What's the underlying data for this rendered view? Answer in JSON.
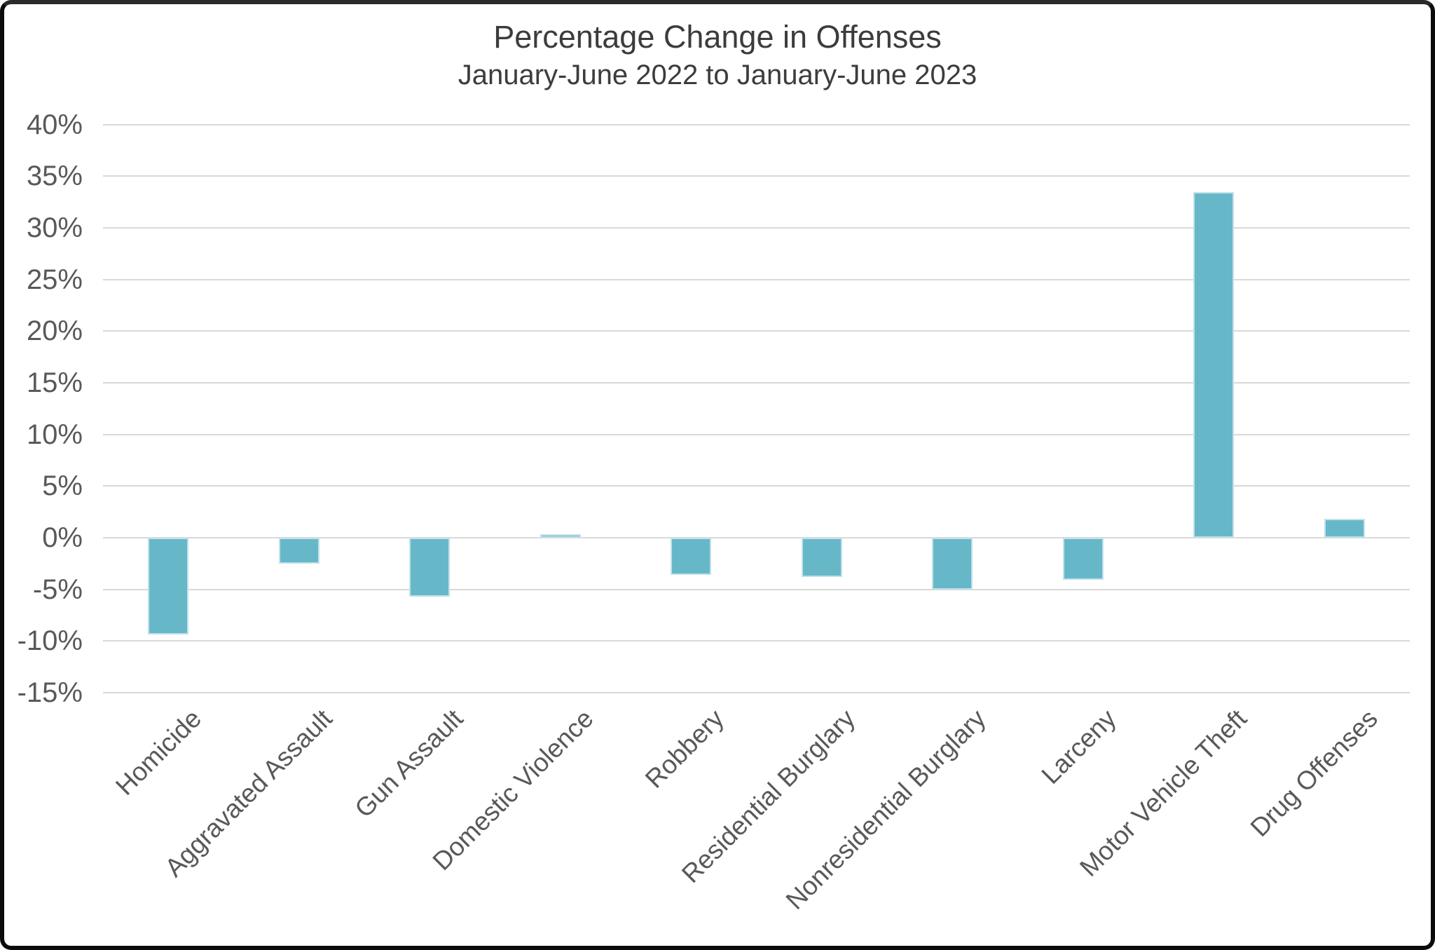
{
  "chart_data": {
    "type": "bar",
    "title": "Percentage Change in Offenses",
    "subtitle": "January-June 2022 to January-June 2023",
    "categories": [
      "Homicide",
      "Aggravated Assault",
      "Gun Assault",
      "Domestic Violence",
      "Robbery",
      "Residential Burglary",
      "Nonresidential Burglary",
      "Larceny",
      "Motor Vehicle Theft",
      "Drug Offenses"
    ],
    "values": [
      -9.4,
      -2.5,
      -5.7,
      0.3,
      -3.6,
      -3.8,
      -5.0,
      -4.1,
      33.5,
      1.8
    ],
    "value_unit": "%",
    "xlabel": "",
    "ylabel": "",
    "ylim": [
      -15,
      40
    ],
    "ytick_step": 5,
    "ytick_labels": [
      "40%",
      "35%",
      "30%",
      "25%",
      "20%",
      "15%",
      "10%",
      "5%",
      "0%",
      "-5%",
      "-10%",
      "-15%"
    ],
    "ytick_values": [
      40,
      35,
      30,
      25,
      20,
      15,
      10,
      5,
      0,
      -5,
      -10,
      -15
    ],
    "grid": "horizontal",
    "legend": "none",
    "bar_color": "#66b8c9",
    "bar_border_color": "#c3e1e9",
    "gridline_color": "#d9d9d9",
    "text_color": "#595959",
    "title_color": "#3c3c3c"
  }
}
